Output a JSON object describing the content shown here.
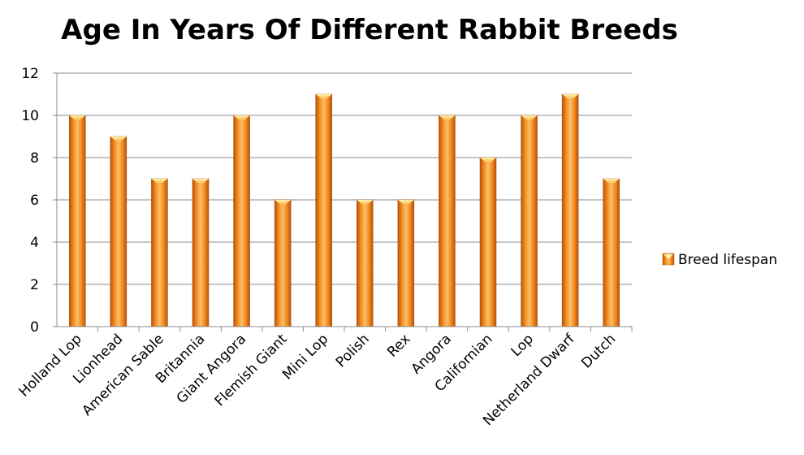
{
  "chart_data": {
    "type": "bar",
    "title": "Age In Years Of Different Rabbit Breeds",
    "xlabel": "",
    "ylabel": "",
    "categories": [
      "Holland Lop",
      "Lionhead",
      "American Sable",
      "Britannia",
      "Giant Angora",
      "Flemish Giant",
      "Mini Lop",
      "Polish",
      "Rex",
      "Angora",
      "Californian",
      "Lop",
      "Netherland Dwarf",
      "Dutch"
    ],
    "series": [
      {
        "name": "Breed lifespan",
        "values": [
          10,
          9,
          7,
          7,
          10,
          6,
          11,
          6,
          6,
          10,
          8,
          10,
          11,
          7
        ],
        "color": "#f28c1e"
      }
    ],
    "ylim": [
      0,
      12
    ],
    "yticks": [
      0,
      2,
      4,
      6,
      8,
      10,
      12
    ],
    "grid": true,
    "legend_position": "right"
  }
}
